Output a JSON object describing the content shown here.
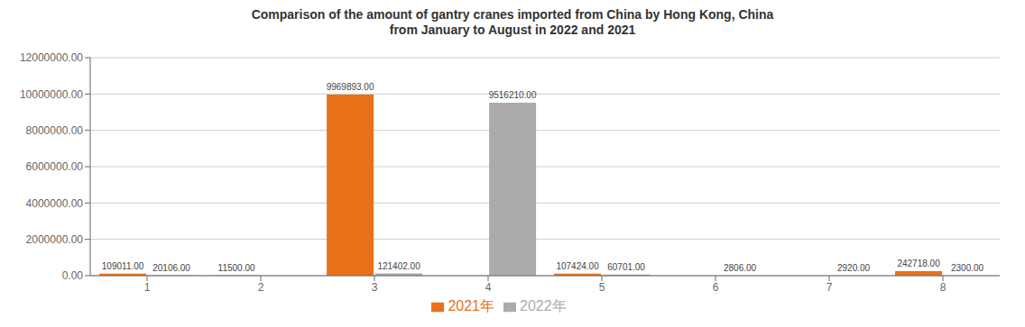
{
  "chart_data": {
    "type": "bar",
    "title": "Comparison of the amount of gantry cranes imported from China by Hong Kong, China\nfrom January to August in 2022 and 2021",
    "categories": [
      "1",
      "2",
      "3",
      "4",
      "5",
      "6",
      "7",
      "8"
    ],
    "series": [
      {
        "name": "2021年",
        "color": "#E8711A",
        "values": [
          109011.0,
          11500.0,
          9969893.0,
          0,
          107424.0,
          0,
          0,
          242718.0
        ],
        "value_labels": [
          "109011.00",
          "11500.00",
          "9969893.00",
          null,
          "107424.00",
          null,
          null,
          "242718.00"
        ]
      },
      {
        "name": "2022年",
        "color": "#ABABAB",
        "values": [
          20106.0,
          0,
          121402.0,
          9516210.0,
          60701.0,
          2806.0,
          2920.0,
          2300.0
        ],
        "value_labels": [
          "20106.00",
          null,
          "121402.00",
          "9516210.00",
          "60701.00",
          "2806.00",
          "2920.00",
          "2300.00"
        ]
      }
    ],
    "ylim": [
      0,
      12000000
    ],
    "yticks": [
      {
        "value": 0,
        "label": "0.00"
      },
      {
        "value": 2000000,
        "label": "2000000.00"
      },
      {
        "value": 4000000,
        "label": "4000000.00"
      },
      {
        "value": 6000000,
        "label": "6000000.00"
      },
      {
        "value": 8000000,
        "label": "8000000.00"
      },
      {
        "value": 10000000,
        "label": "10000000.00"
      },
      {
        "value": 12000000,
        "label": "12000000.00"
      }
    ],
    "grid": true,
    "legend": "bottom",
    "data_labels": true
  }
}
